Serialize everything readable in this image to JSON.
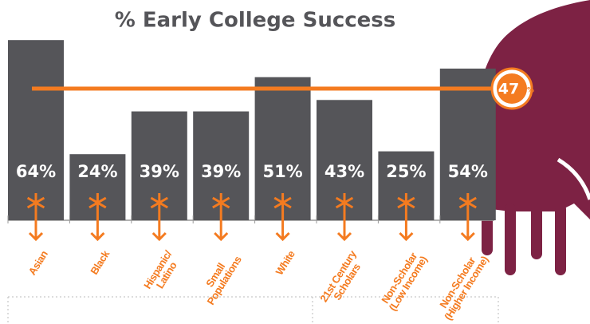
{
  "chart_data": {
    "type": "bar",
    "title": "% Early College Success",
    "categories": [
      "Asian",
      "Black",
      "Hispanic/\nLatino",
      "Small\nPopulations",
      "White",
      "21st Century\nScholars",
      "Non-Scholar\n(Low Income)",
      "Non-Scholar\n(Higher Income)"
    ],
    "values": [
      64,
      24,
      39,
      39,
      51,
      43,
      25,
      54
    ],
    "value_labels": [
      "64%",
      "24%",
      "39%",
      "39%",
      "51%",
      "43%",
      "25%",
      "54%"
    ],
    "color": "#555559",
    "reference": {
      "value": 47,
      "label": "47",
      "unit": "%",
      "color": "#f47b20"
    }
  }
}
